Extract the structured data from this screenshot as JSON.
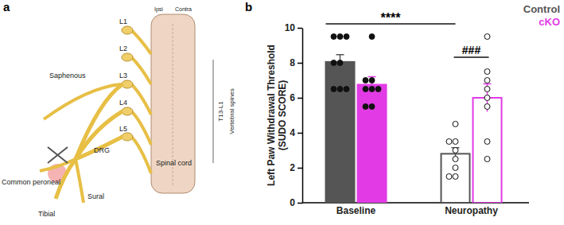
{
  "chart_data": {
    "type": "bar",
    "title": "b",
    "ylabel": "Left Paw Withdrawal Threshold (SUDO SCORE)",
    "categories": [
      "Baseline",
      "Neuropathy"
    ],
    "series": [
      {
        "name": "Control",
        "color": "#555555",
        "values": [
          8.05,
          2.8
        ],
        "errors": [
          0.42,
          0.35
        ],
        "points": [
          [
            9.5,
            9.5,
            9.5,
            8,
            8,
            6.5,
            6.5,
            6.5
          ],
          [
            4.5,
            3.5,
            3.5,
            3,
            2.5,
            2,
            1.5,
            1.5
          ]
        ]
      },
      {
        "name": "cKO",
        "color": "#e23be6",
        "values": [
          6.75,
          6.0
        ],
        "errors": [
          0.45,
          0.8
        ],
        "points": [
          [
            9.5,
            7,
            7,
            6.5,
            6.5,
            6.5,
            5.5,
            5.5
          ],
          [
            9.5,
            7.5,
            7,
            6.5,
            6,
            5.5,
            3.5,
            2.5
          ]
        ]
      }
    ],
    "annotations": [
      "****",
      "###"
    ],
    "ylim": [
      0,
      10
    ],
    "yticks": [
      0,
      2,
      4,
      6,
      8,
      10
    ],
    "grid": false,
    "legend": "top-right"
  },
  "diagram": {
    "panel_label": "a",
    "labels": [
      "L1",
      "L2",
      "Ipsi",
      "Contra",
      "L3",
      "L4",
      "L5",
      "Saphenous",
      "DRG",
      "Spinal cord",
      "T13-L1",
      "Vertebral spines",
      "Common peroneal",
      "Tibial",
      "Sural"
    ]
  }
}
